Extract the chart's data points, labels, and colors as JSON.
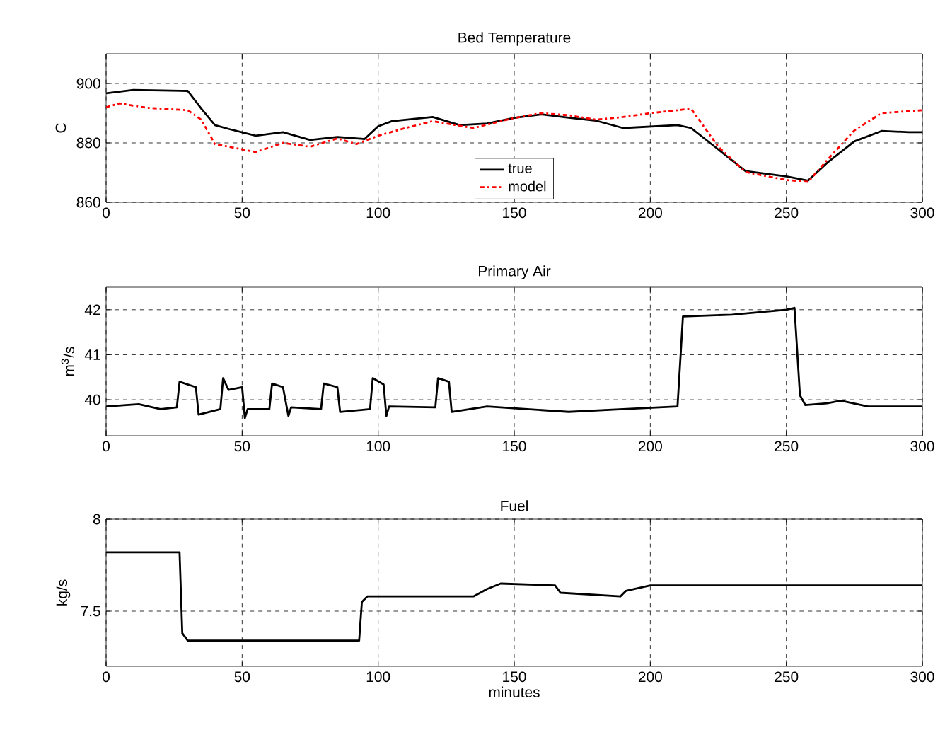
{
  "chart_data": [
    {
      "type": "line",
      "title": "Bed Temperature",
      "ylabel": "C",
      "xlim": [
        0,
        300
      ],
      "xticks": [
        0,
        50,
        100,
        150,
        200,
        250,
        300
      ],
      "ylim": [
        860,
        910
      ],
      "yticks": [
        860,
        880,
        900
      ],
      "grid": true,
      "legend": "bottom",
      "series": [
        {
          "name": "true",
          "color": "#000000",
          "line_style": "solid",
          "x": [
            0,
            10,
            30,
            35,
            40,
            45,
            55,
            65,
            75,
            85,
            95,
            100,
            105,
            120,
            130,
            140,
            150,
            160,
            170,
            180,
            190,
            200,
            210,
            215,
            225,
            235,
            250,
            258,
            265,
            275,
            285,
            295,
            300
          ],
          "values": [
            896.7,
            897.8,
            897.5,
            891.5,
            886,
            884.7,
            882.4,
            883.6,
            881,
            882,
            881.3,
            885.6,
            887.3,
            888.7,
            886,
            886.5,
            888.4,
            889.6,
            888.5,
            887.5,
            885,
            885.5,
            886,
            885,
            877.8,
            870.5,
            868.7,
            867.3,
            873.3,
            880.5,
            884,
            883.6,
            883.6
          ]
        },
        {
          "name": "model",
          "color": "#ff0000",
          "line_style": "dashdot",
          "x": [
            0,
            5,
            15,
            30,
            35,
            40,
            50,
            55,
            65,
            75,
            85,
            92,
            100,
            110,
            120,
            135,
            150,
            160,
            170,
            180,
            190,
            200,
            215,
            225,
            235,
            250,
            258,
            265,
            275,
            285,
            300
          ],
          "values": [
            892,
            893.3,
            891.8,
            891,
            887.8,
            879.6,
            877.8,
            876.9,
            880,
            878.7,
            881.5,
            879.6,
            882.4,
            885,
            887.3,
            885,
            888.4,
            890,
            889.3,
            887.8,
            888.7,
            890,
            891.5,
            878.7,
            870.2,
            867.5,
            866.9,
            874.2,
            884.2,
            890,
            891
          ]
        }
      ]
    },
    {
      "type": "line",
      "title": "Primary Air",
      "ylabel": "m$^{3}$/s",
      "xlim": [
        0,
        300
      ],
      "xticks": [
        0,
        50,
        100,
        150,
        200,
        250,
        300
      ],
      "ylim": [
        39.2,
        42.5
      ],
      "yticks": [
        40,
        41,
        42
      ],
      "grid": true,
      "series": [
        {
          "color": "#000000",
          "line_style": "solid",
          "x": [
            0,
            12,
            20,
            26,
            27,
            33,
            34,
            42,
            43,
            45,
            50,
            51,
            52,
            60,
            61,
            65,
            67,
            68,
            79,
            80,
            85,
            86,
            97,
            98,
            102,
            103,
            104,
            121,
            122,
            126,
            127,
            140,
            170,
            190,
            210,
            212,
            230,
            250,
            253,
            255,
            257,
            265,
            270,
            280,
            300
          ],
          "values": [
            39.85,
            39.9,
            39.79,
            39.83,
            40.4,
            40.28,
            39.67,
            39.79,
            40.48,
            40.22,
            40.28,
            39.59,
            39.79,
            39.79,
            40.36,
            40.28,
            39.64,
            39.83,
            39.79,
            40.36,
            40.28,
            39.73,
            39.79,
            40.48,
            40.34,
            39.64,
            39.85,
            39.83,
            40.48,
            40.4,
            39.73,
            39.85,
            39.73,
            39.79,
            39.85,
            41.85,
            41.89,
            42.0,
            42.04,
            40.1,
            39.88,
            39.92,
            39.98,
            39.85,
            39.85
          ]
        }
      ]
    },
    {
      "type": "line",
      "title": "Fuel",
      "xlabel": "minutes",
      "ylabel": "kg/s",
      "xlim": [
        0,
        300
      ],
      "xticks": [
        0,
        50,
        100,
        150,
        200,
        250,
        300
      ],
      "ylim": [
        7.2,
        8
      ],
      "yticks": [
        7.5,
        8
      ],
      "grid": true,
      "series": [
        {
          "color": "#000000",
          "line_style": "solid",
          "x": [
            0,
            27,
            28,
            30,
            93,
            94,
            96,
            135,
            140,
            145,
            165,
            167,
            189,
            191,
            200,
            300
          ],
          "values": [
            7.82,
            7.82,
            7.38,
            7.34,
            7.34,
            7.55,
            7.58,
            7.58,
            7.62,
            7.65,
            7.64,
            7.6,
            7.58,
            7.61,
            7.64,
            7.64
          ]
        }
      ]
    }
  ]
}
